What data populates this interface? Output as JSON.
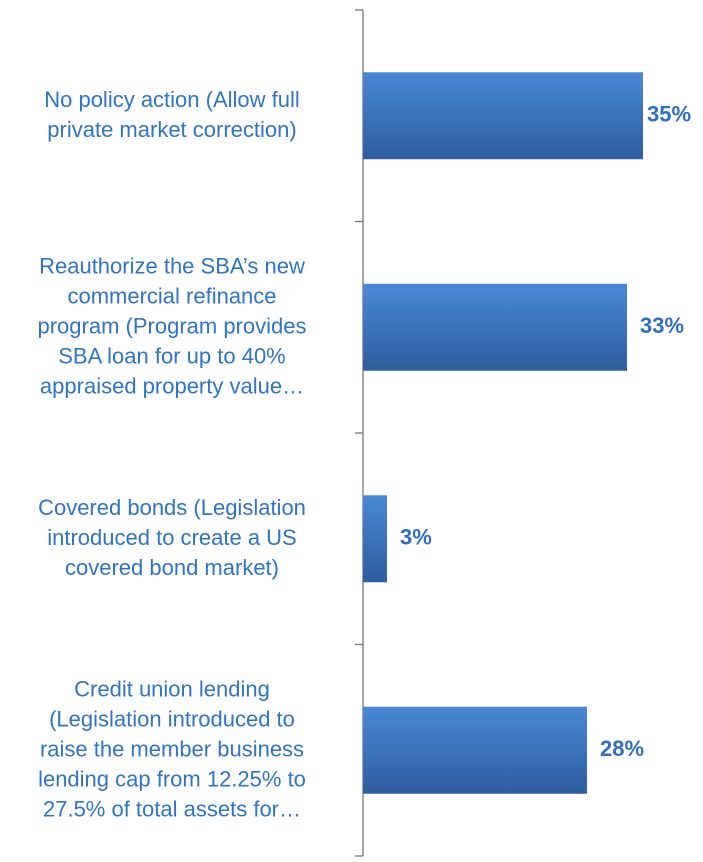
{
  "chart_data": {
    "type": "bar",
    "orientation": "horizontal",
    "categories": [
      "No policy action (Allow full\nprivate market correction)",
      "Reauthorize the SBA’s new\ncommercial refinance\nprogram (Program provides\nSBA loan for up to 40%\nappraised property value…",
      "Covered bonds (Legislation\nintroduced to create a US\ncovered bond market)",
      "Credit union lending\n(Legislation introduced to\nraise the member business\nlending cap from 12.25% to\n27.5% of total assets for…"
    ],
    "values": [
      35,
      33,
      3,
      28
    ],
    "value_labels": [
      "35%",
      "33%",
      "3%",
      "28%"
    ],
    "color": "#3b78c8"
  }
}
